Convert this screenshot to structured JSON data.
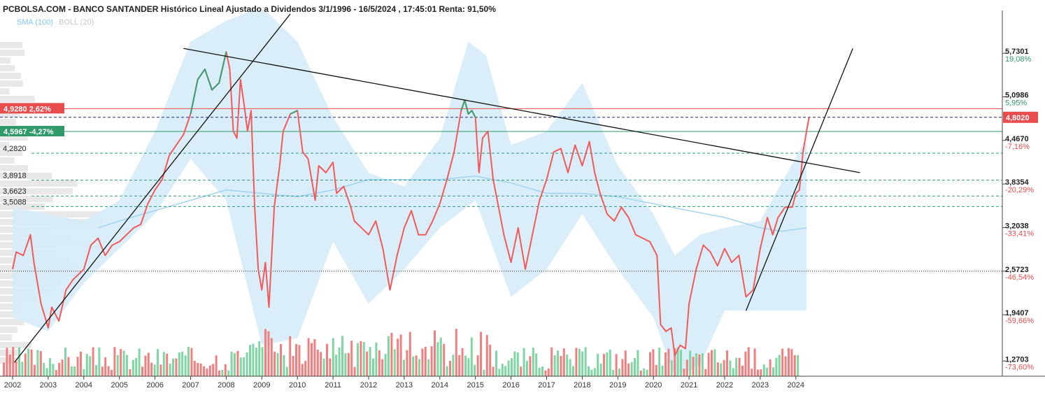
{
  "header": {
    "title": "PCBOLSA.COM - BANCO SANTANDER Histórico Lineal Ajustado a Dividendos 3/1/1996 - 16/5/2024 , 17:45:01 Renta: 91,50%",
    "indicators": [
      {
        "label": "SMA (100)",
        "color": "#7cc8f0"
      },
      {
        "label": "BOLL (20)",
        "color": "#c8c8c8"
      }
    ]
  },
  "colors": {
    "price_up": "#3a9e6e",
    "price_down": "#f25a5a",
    "boll_band": "#d6ecfa",
    "sma": "#9fd3f2",
    "trendline": "#111111",
    "red_line": "#e84c4c",
    "green_line": "#2f9a6a",
    "navy_dash": "#1f2d8a",
    "teal_dash": "#2f9a7a"
  },
  "chart_data": {
    "type": "line",
    "ylim": [
      1.05,
      6.35
    ],
    "x_ticks": [
      "2002",
      "2003",
      "2004",
      "2005",
      "2006",
      "2007",
      "2008",
      "2009",
      "2010",
      "2011",
      "2012",
      "2013",
      "2014",
      "2015",
      "2016",
      "2017",
      "2018",
      "2019",
      "2020",
      "2021",
      "2022",
      "2023",
      "2024"
    ],
    "y_ticks": [
      {
        "value": "5,7301",
        "pct": "19,08%",
        "pct_color": "#2f9a6a"
      },
      {
        "value": "5,0986",
        "pct": "5,95%",
        "pct_color": "#2f9a6a"
      },
      {
        "value": "4,4670",
        "pct": "-7,16%",
        "pct_color": "#e84c4c"
      },
      {
        "value": "3,8354",
        "pct": "-20,29%",
        "pct_color": "#e84c4c"
      },
      {
        "value": "3,2038",
        "pct": "-33,41%",
        "pct_color": "#e84c4c"
      },
      {
        "value": "2,5723",
        "pct": "-46,54%",
        "pct_color": "#e84c4c"
      },
      {
        "value": "1,9407",
        "pct": "-59,66%",
        "pct_color": "#e84c4c"
      },
      {
        "value": "1,2703",
        "pct": "-73,60%",
        "pct_color": "#e84c4c"
      }
    ],
    "last_price": {
      "label": "4,8020",
      "value": 4.802
    },
    "price_tags": [
      {
        "label": "4,9280  2,62%",
        "value": 4.928,
        "color": "#e84c4c"
      },
      {
        "label": "4,5967  -4,27%",
        "value": 4.5967,
        "color": "#2f9a6a"
      }
    ],
    "level_labels": [
      {
        "label": "4,2820",
        "value": 4.282
      },
      {
        "label": "3,8918",
        "value": 3.8918
      },
      {
        "label": "3,6623",
        "value": 3.6623
      },
      {
        "label": "3,5088",
        "value": 3.5088
      }
    ],
    "dotted_level": 2.5723,
    "price_series": [
      [
        2002.0,
        2.6
      ],
      [
        2002.1,
        2.85
      ],
      [
        2002.3,
        2.8
      ],
      [
        2002.5,
        3.1
      ],
      [
        2002.6,
        2.7
      ],
      [
        2002.8,
        2.1
      ],
      [
        2003.0,
        1.75
      ],
      [
        2003.1,
        2.05
      ],
      [
        2003.3,
        1.85
      ],
      [
        2003.5,
        2.3
      ],
      [
        2003.7,
        2.45
      ],
      [
        2004.0,
        2.6
      ],
      [
        2004.2,
        2.95
      ],
      [
        2004.4,
        3.05
      ],
      [
        2004.6,
        2.8
      ],
      [
        2004.8,
        2.95
      ],
      [
        2005.0,
        3.0
      ],
      [
        2005.2,
        3.1
      ],
      [
        2005.4,
        3.2
      ],
      [
        2005.6,
        3.25
      ],
      [
        2005.8,
        3.55
      ],
      [
        2006.0,
        3.75
      ],
      [
        2006.2,
        3.9
      ],
      [
        2006.4,
        4.25
      ],
      [
        2006.6,
        4.4
      ],
      [
        2006.8,
        4.55
      ],
      [
        2007.0,
        4.85
      ],
      [
        2007.2,
        5.35
      ],
      [
        2007.4,
        5.5
      ],
      [
        2007.6,
        5.2
      ],
      [
        2007.8,
        5.3
      ],
      [
        2008.0,
        5.75
      ],
      [
        2008.1,
        5.5
      ],
      [
        2008.2,
        4.6
      ],
      [
        2008.3,
        4.5
      ],
      [
        2008.4,
        5.35
      ],
      [
        2008.5,
        5.0
      ],
      [
        2008.6,
        4.6
      ],
      [
        2008.7,
        4.9
      ],
      [
        2008.8,
        3.5
      ],
      [
        2008.9,
        2.6
      ],
      [
        2009.0,
        2.3
      ],
      [
        2009.1,
        2.7
      ],
      [
        2009.2,
        2.05
      ],
      [
        2009.35,
        3.5
      ],
      [
        2009.5,
        4.1
      ],
      [
        2009.6,
        4.6
      ],
      [
        2009.8,
        4.85
      ],
      [
        2010.0,
        4.9
      ],
      [
        2010.15,
        4.3
      ],
      [
        2010.3,
        4.2
      ],
      [
        2010.4,
        3.9
      ],
      [
        2010.5,
        3.6
      ],
      [
        2010.6,
        4.1
      ],
      [
        2010.8,
        4.0
      ],
      [
        2011.0,
        4.15
      ],
      [
        2011.1,
        3.7
      ],
      [
        2011.3,
        3.8
      ],
      [
        2011.5,
        3.5
      ],
      [
        2011.6,
        3.3
      ],
      [
        2011.8,
        3.2
      ],
      [
        2012.0,
        3.1
      ],
      [
        2012.2,
        3.3
      ],
      [
        2012.4,
        2.9
      ],
      [
        2012.6,
        2.3
      ],
      [
        2012.8,
        2.8
      ],
      [
        2013.0,
        3.2
      ],
      [
        2013.2,
        3.45
      ],
      [
        2013.4,
        3.1
      ],
      [
        2013.6,
        3.1
      ],
      [
        2013.8,
        3.3
      ],
      [
        2014.0,
        3.55
      ],
      [
        2014.2,
        3.9
      ],
      [
        2014.4,
        4.3
      ],
      [
        2014.6,
        4.9
      ],
      [
        2014.7,
        5.05
      ],
      [
        2014.8,
        4.85
      ],
      [
        2014.9,
        4.9
      ],
      [
        2015.0,
        4.8
      ],
      [
        2015.1,
        4.0
      ],
      [
        2015.2,
        4.5
      ],
      [
        2015.35,
        4.6
      ],
      [
        2015.5,
        3.9
      ],
      [
        2015.65,
        3.5
      ],
      [
        2015.8,
        3.1
      ],
      [
        2016.0,
        2.7
      ],
      [
        2016.2,
        3.2
      ],
      [
        2016.4,
        2.6
      ],
      [
        2016.6,
        3.1
      ],
      [
        2016.8,
        3.6
      ],
      [
        2017.0,
        3.9
      ],
      [
        2017.2,
        4.3
      ],
      [
        2017.4,
        4.35
      ],
      [
        2017.6,
        4.0
      ],
      [
        2017.8,
        4.4
      ],
      [
        2018.0,
        4.1
      ],
      [
        2018.2,
        4.45
      ],
      [
        2018.35,
        4.0
      ],
      [
        2018.5,
        3.7
      ],
      [
        2018.7,
        3.4
      ],
      [
        2018.9,
        3.3
      ],
      [
        2019.1,
        3.5
      ],
      [
        2019.3,
        3.35
      ],
      [
        2019.5,
        3.1
      ],
      [
        2019.7,
        3.05
      ],
      [
        2019.9,
        3.0
      ],
      [
        2020.1,
        2.8
      ],
      [
        2020.2,
        1.8
      ],
      [
        2020.35,
        1.7
      ],
      [
        2020.5,
        1.75
      ],
      [
        2020.6,
        1.35
      ],
      [
        2020.75,
        1.5
      ],
      [
        2020.9,
        1.45
      ],
      [
        2021.0,
        2.1
      ],
      [
        2021.2,
        2.6
      ],
      [
        2021.4,
        2.95
      ],
      [
        2021.6,
        2.85
      ],
      [
        2021.8,
        2.65
      ],
      [
        2022.0,
        2.9
      ],
      [
        2022.2,
        2.7
      ],
      [
        2022.4,
        2.8
      ],
      [
        2022.6,
        2.2
      ],
      [
        2022.8,
        2.3
      ],
      [
        2023.0,
        2.9
      ],
      [
        2023.2,
        3.35
      ],
      [
        2023.35,
        3.1
      ],
      [
        2023.5,
        3.35
      ],
      [
        2023.7,
        3.5
      ],
      [
        2023.9,
        3.5
      ],
      [
        2024.0,
        3.7
      ],
      [
        2024.1,
        3.75
      ],
      [
        2024.2,
        4.3
      ],
      [
        2024.3,
        4.6
      ],
      [
        2024.37,
        4.8
      ]
    ],
    "green_segments": [
      [
        2006.9,
        2008.05
      ],
      [
        2009.75,
        2010.0
      ],
      [
        2014.45,
        2015.05
      ]
    ],
    "sma_series": [
      [
        2004.4,
        3.2
      ],
      [
        2005.0,
        3.3
      ],
      [
        2006.0,
        3.45
      ],
      [
        2007.0,
        3.6
      ],
      [
        2008.0,
        3.75
      ],
      [
        2009.0,
        3.7
      ],
      [
        2010.0,
        3.65
      ],
      [
        2011.0,
        3.75
      ],
      [
        2012.0,
        3.9
      ],
      [
        2013.0,
        3.9
      ],
      [
        2014.0,
        3.9
      ],
      [
        2015.0,
        3.95
      ],
      [
        2016.0,
        3.85
      ],
      [
        2017.0,
        3.7
      ],
      [
        2018.0,
        3.7
      ],
      [
        2019.0,
        3.65
      ],
      [
        2020.0,
        3.55
      ],
      [
        2021.0,
        3.45
      ],
      [
        2022.0,
        3.35
      ],
      [
        2023.0,
        3.2
      ],
      [
        2023.6,
        3.15
      ],
      [
        2024.3,
        3.2
      ]
    ],
    "boll_upper": [
      [
        2002.0,
        3.5
      ],
      [
        2003.0,
        3.4
      ],
      [
        2004.0,
        3.3
      ],
      [
        2005.0,
        3.6
      ],
      [
        2006.0,
        4.6
      ],
      [
        2007.0,
        5.9
      ],
      [
        2008.0,
        6.2
      ],
      [
        2009.0,
        6.4
      ],
      [
        2010.0,
        5.9
      ],
      [
        2011.0,
        4.8
      ],
      [
        2012.0,
        4.0
      ],
      [
        2013.0,
        3.8
      ],
      [
        2014.0,
        4.5
      ],
      [
        2014.8,
        5.9
      ],
      [
        2015.3,
        5.7
      ],
      [
        2016.0,
        4.4
      ],
      [
        2017.0,
        4.6
      ],
      [
        2018.0,
        5.3
      ],
      [
        2019.0,
        4.1
      ],
      [
        2020.0,
        3.4
      ],
      [
        2020.6,
        2.8
      ],
      [
        2021.3,
        3.1
      ],
      [
        2022.0,
        3.2
      ],
      [
        2023.0,
        3.3
      ],
      [
        2024.3,
        4.5
      ]
    ],
    "boll_lower": [
      [
        2002.0,
        1.9
      ],
      [
        2003.0,
        1.7
      ],
      [
        2004.0,
        2.4
      ],
      [
        2005.0,
        2.9
      ],
      [
        2006.0,
        3.4
      ],
      [
        2007.0,
        4.2
      ],
      [
        2008.0,
        3.6
      ],
      [
        2009.0,
        1.5
      ],
      [
        2010.0,
        1.6
      ],
      [
        2011.0,
        3.0
      ],
      [
        2012.0,
        2.1
      ],
      [
        2013.0,
        2.6
      ],
      [
        2014.0,
        3.2
      ],
      [
        2015.0,
        3.6
      ],
      [
        2016.0,
        2.2
      ],
      [
        2017.0,
        2.6
      ],
      [
        2018.0,
        3.4
      ],
      [
        2019.0,
        2.6
      ],
      [
        2020.0,
        1.9
      ],
      [
        2020.6,
        1.05
      ],
      [
        2021.3,
        1.2
      ],
      [
        2022.0,
        2.0
      ],
      [
        2023.0,
        2.0
      ],
      [
        2024.3,
        2.0
      ]
    ],
    "trendlines": [
      [
        [
          2002.05,
          1.25
        ],
        [
          2009.8,
          6.3
        ]
      ],
      [
        [
          2006.8,
          5.8
        ],
        [
          2025.8,
          4.0
        ]
      ],
      [
        [
          2022.6,
          2.0
        ],
        [
          2025.6,
          5.8
        ]
      ]
    ]
  }
}
